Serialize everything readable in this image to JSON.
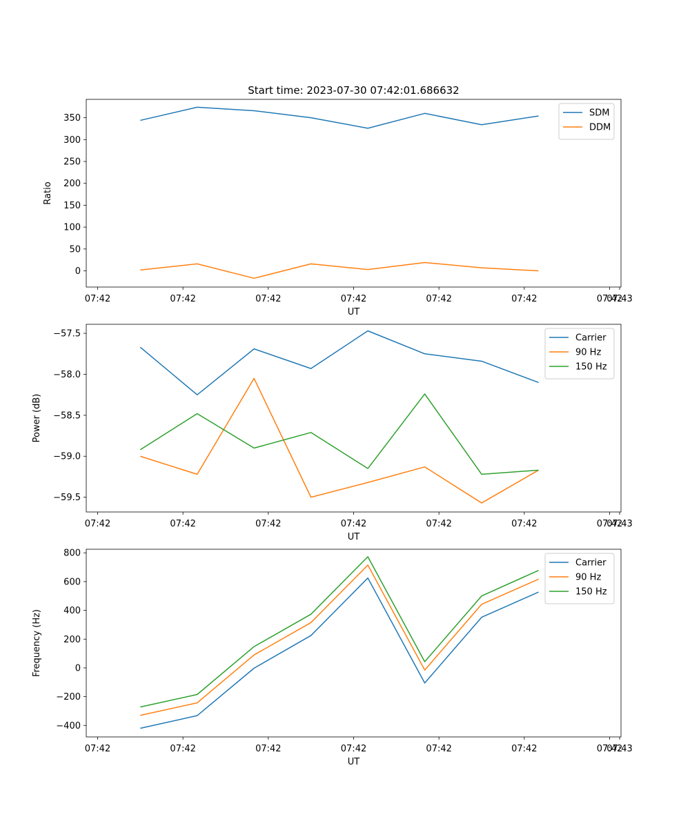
{
  "figure_title": "Start time: 2023-07-30 07:42:01.686632",
  "chart_data": [
    {
      "type": "line",
      "title": "Start time: 2023-07-30 07:42:01.686632",
      "xlabel": "UT",
      "ylabel": "Ratio",
      "x_tick_labels": [
        "07:42",
        "07:42",
        "07:42",
        "07:42",
        "07:42",
        "07:42",
        "07:42"
      ],
      "x_tick_values": [
        0,
        1.5,
        3,
        4.5,
        6,
        7.5,
        9
      ],
      "x_tick_extra_label": "07:43",
      "xlim": [
        -0.2,
        9.2
      ],
      "ylim": [
        -37,
        392
      ],
      "y_ticks": [
        0,
        50,
        100,
        150,
        200,
        250,
        300,
        350
      ],
      "y_tick_labels": [
        "0",
        "50",
        "100",
        "150",
        "200",
        "250",
        "300",
        "350"
      ],
      "x": [
        0.75,
        1.75,
        2.75,
        3.75,
        4.75,
        5.75,
        6.75,
        7.75
      ],
      "legend_position": "top-right",
      "series": [
        {
          "name": "SDM",
          "color": "#1f77b4",
          "values": [
            344,
            374,
            366,
            350,
            326,
            360,
            334,
            354
          ]
        },
        {
          "name": "DDM",
          "color": "#ff7f0e",
          "values": [
            2,
            16,
            -17,
            16,
            3,
            19,
            7,
            0
          ]
        }
      ]
    },
    {
      "type": "line",
      "title": "",
      "xlabel": "UT",
      "ylabel": "Power (dB)",
      "x_tick_labels": [
        "07:42",
        "07:42",
        "07:42",
        "07:42",
        "07:42",
        "07:42",
        "07:42"
      ],
      "x_tick_values": [
        0,
        1.5,
        3,
        4.5,
        6,
        7.5,
        9
      ],
      "x_tick_extra_label": "07:43",
      "xlim": [
        -0.2,
        9.2
      ],
      "ylim": [
        -59.68,
        -57.39
      ],
      "y_ticks": [
        -59.5,
        -59.0,
        -58.5,
        -58.0,
        -57.5
      ],
      "y_tick_labels": [
        "−59.5",
        "−59.0",
        "−58.5",
        "−58.0",
        "−57.5"
      ],
      "x": [
        0.75,
        1.75,
        2.75,
        3.75,
        4.75,
        5.75,
        6.75,
        7.75
      ],
      "legend_position": "top-right",
      "series": [
        {
          "name": "Carrier",
          "color": "#1f77b4",
          "values": [
            -57.67,
            -58.25,
            -57.69,
            -57.93,
            -57.47,
            -57.75,
            -57.84,
            -58.1
          ]
        },
        {
          "name": "90 Hz",
          "color": "#ff7f0e",
          "values": [
            -59.0,
            -59.22,
            -58.05,
            -59.5,
            -59.32,
            -59.13,
            -59.57,
            -59.17
          ]
        },
        {
          "name": "150 Hz",
          "color": "#2ca02c",
          "values": [
            -58.92,
            -58.48,
            -58.9,
            -58.71,
            -59.15,
            -58.24,
            -59.22,
            -59.17
          ]
        }
      ]
    },
    {
      "type": "line",
      "title": "",
      "xlabel": "UT",
      "ylabel": "Frequency (Hz)",
      "x_tick_labels": [
        "07:42",
        "07:42",
        "07:42",
        "07:42",
        "07:42",
        "07:42",
        "07:42"
      ],
      "x_tick_values": [
        0,
        1.5,
        3,
        4.5,
        6,
        7.5,
        9
      ],
      "x_tick_extra_label": "07:43",
      "xlim": [
        -0.2,
        9.2
      ],
      "ylim": [
        -480,
        825
      ],
      "y_ticks": [
        -400,
        -200,
        0,
        200,
        400,
        600,
        800
      ],
      "y_tick_labels": [
        "−400",
        "−200",
        "0",
        "200",
        "400",
        "600",
        "800"
      ],
      "x": [
        0.75,
        1.75,
        2.75,
        3.75,
        4.75,
        5.75,
        6.75,
        7.75
      ],
      "legend_position": "top-right",
      "series": [
        {
          "name": "Carrier",
          "color": "#1f77b4",
          "values": [
            -420,
            -332,
            -2,
            225,
            625,
            -105,
            352,
            527
          ]
        },
        {
          "name": "90 Hz",
          "color": "#ff7f0e",
          "values": [
            -330,
            -243,
            90,
            315,
            715,
            -15,
            442,
            617
          ]
        },
        {
          "name": "150 Hz",
          "color": "#2ca02c",
          "values": [
            -272,
            -185,
            148,
            373,
            773,
            43,
            500,
            678
          ]
        }
      ]
    }
  ]
}
